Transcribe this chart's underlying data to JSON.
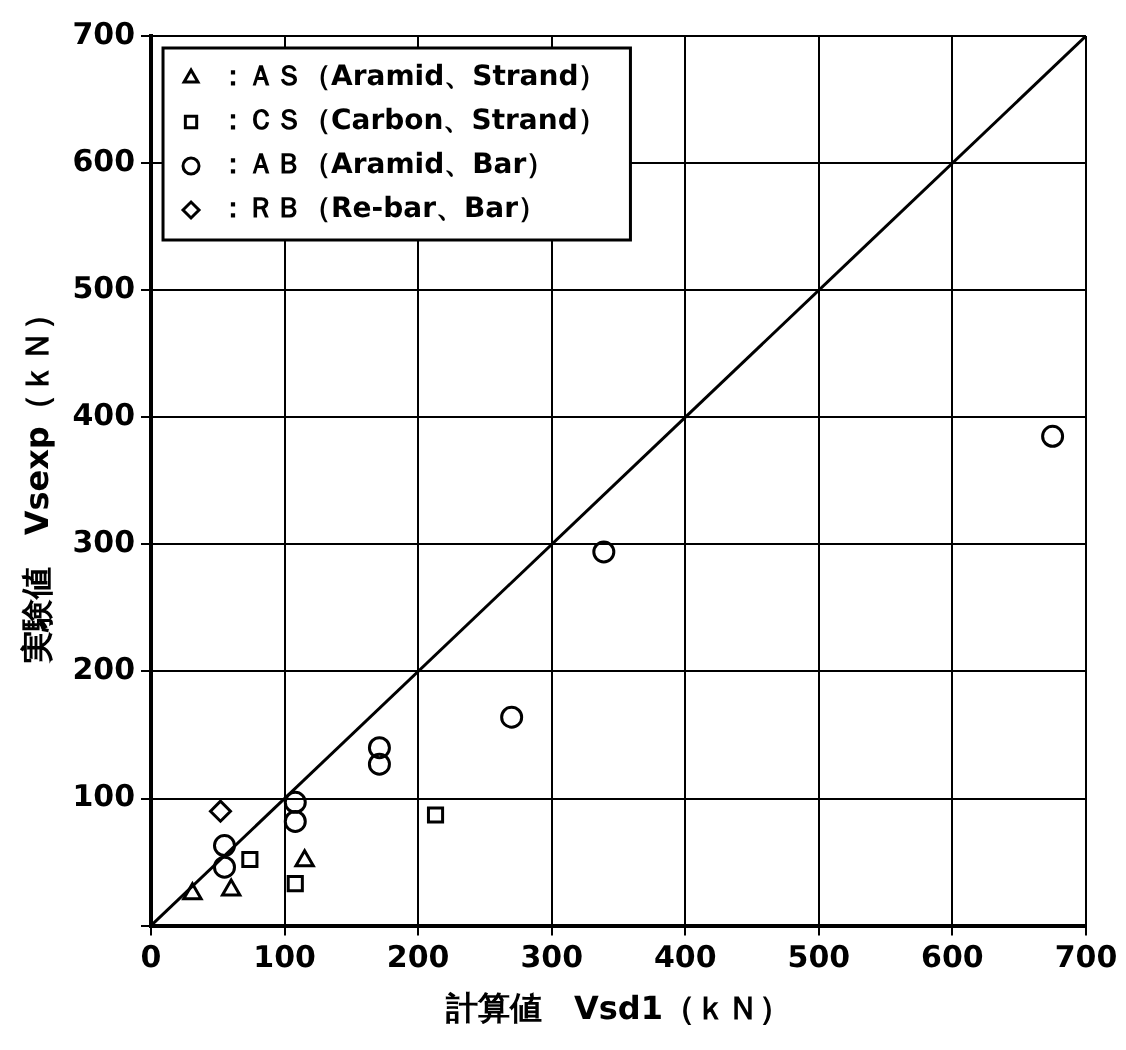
{
  "chart_data": {
    "type": "scatter",
    "xlabel": "計算値　Vsd1（ｋＮ）",
    "ylabel": "実験値　Vsexp（ｋＮ）",
    "xlim": [
      0,
      700
    ],
    "ylim": [
      0,
      700
    ],
    "xticks": [
      0,
      100,
      200,
      300,
      400,
      500,
      600,
      700
    ],
    "yticks": [
      {
        "value": 0,
        "label": null
      },
      100,
      200,
      300,
      400,
      500,
      600,
      700
    ],
    "grid": true,
    "legend": "top left",
    "series": [
      {
        "name": "：ＡＳ（Aramid、Strand）",
        "color": "#000000",
        "marker": "triangle",
        "x": [
          31,
          60,
          115
        ],
        "values": [
          25,
          28,
          51
        ]
      },
      {
        "name": "：ＣＳ（Carbon、Strand）",
        "color": "#000000",
        "marker": "square",
        "x": [
          74,
          108,
          213
        ],
        "values": [
          52,
          33,
          87
        ]
      },
      {
        "name": "：ＡＢ（Aramid、Bar）",
        "color": "#000000",
        "marker": "circle",
        "x": [
          55,
          55,
          108,
          108,
          171,
          171,
          270,
          339,
          675
        ],
        "values": [
          63,
          46,
          97,
          82,
          140,
          127,
          164,
          294,
          385
        ]
      },
      {
        "name": "：ＲＢ（Re-bar、Bar）",
        "color": "#000000",
        "marker": "diamond",
        "x": [
          52
        ],
        "values": [
          90
        ]
      },
      {
        "type": "line",
        "color": "#000000",
        "marker": "none",
        "line_style": "solid",
        "x": [
          0,
          700
        ],
        "values": [
          0,
          700
        ]
      }
    ]
  }
}
